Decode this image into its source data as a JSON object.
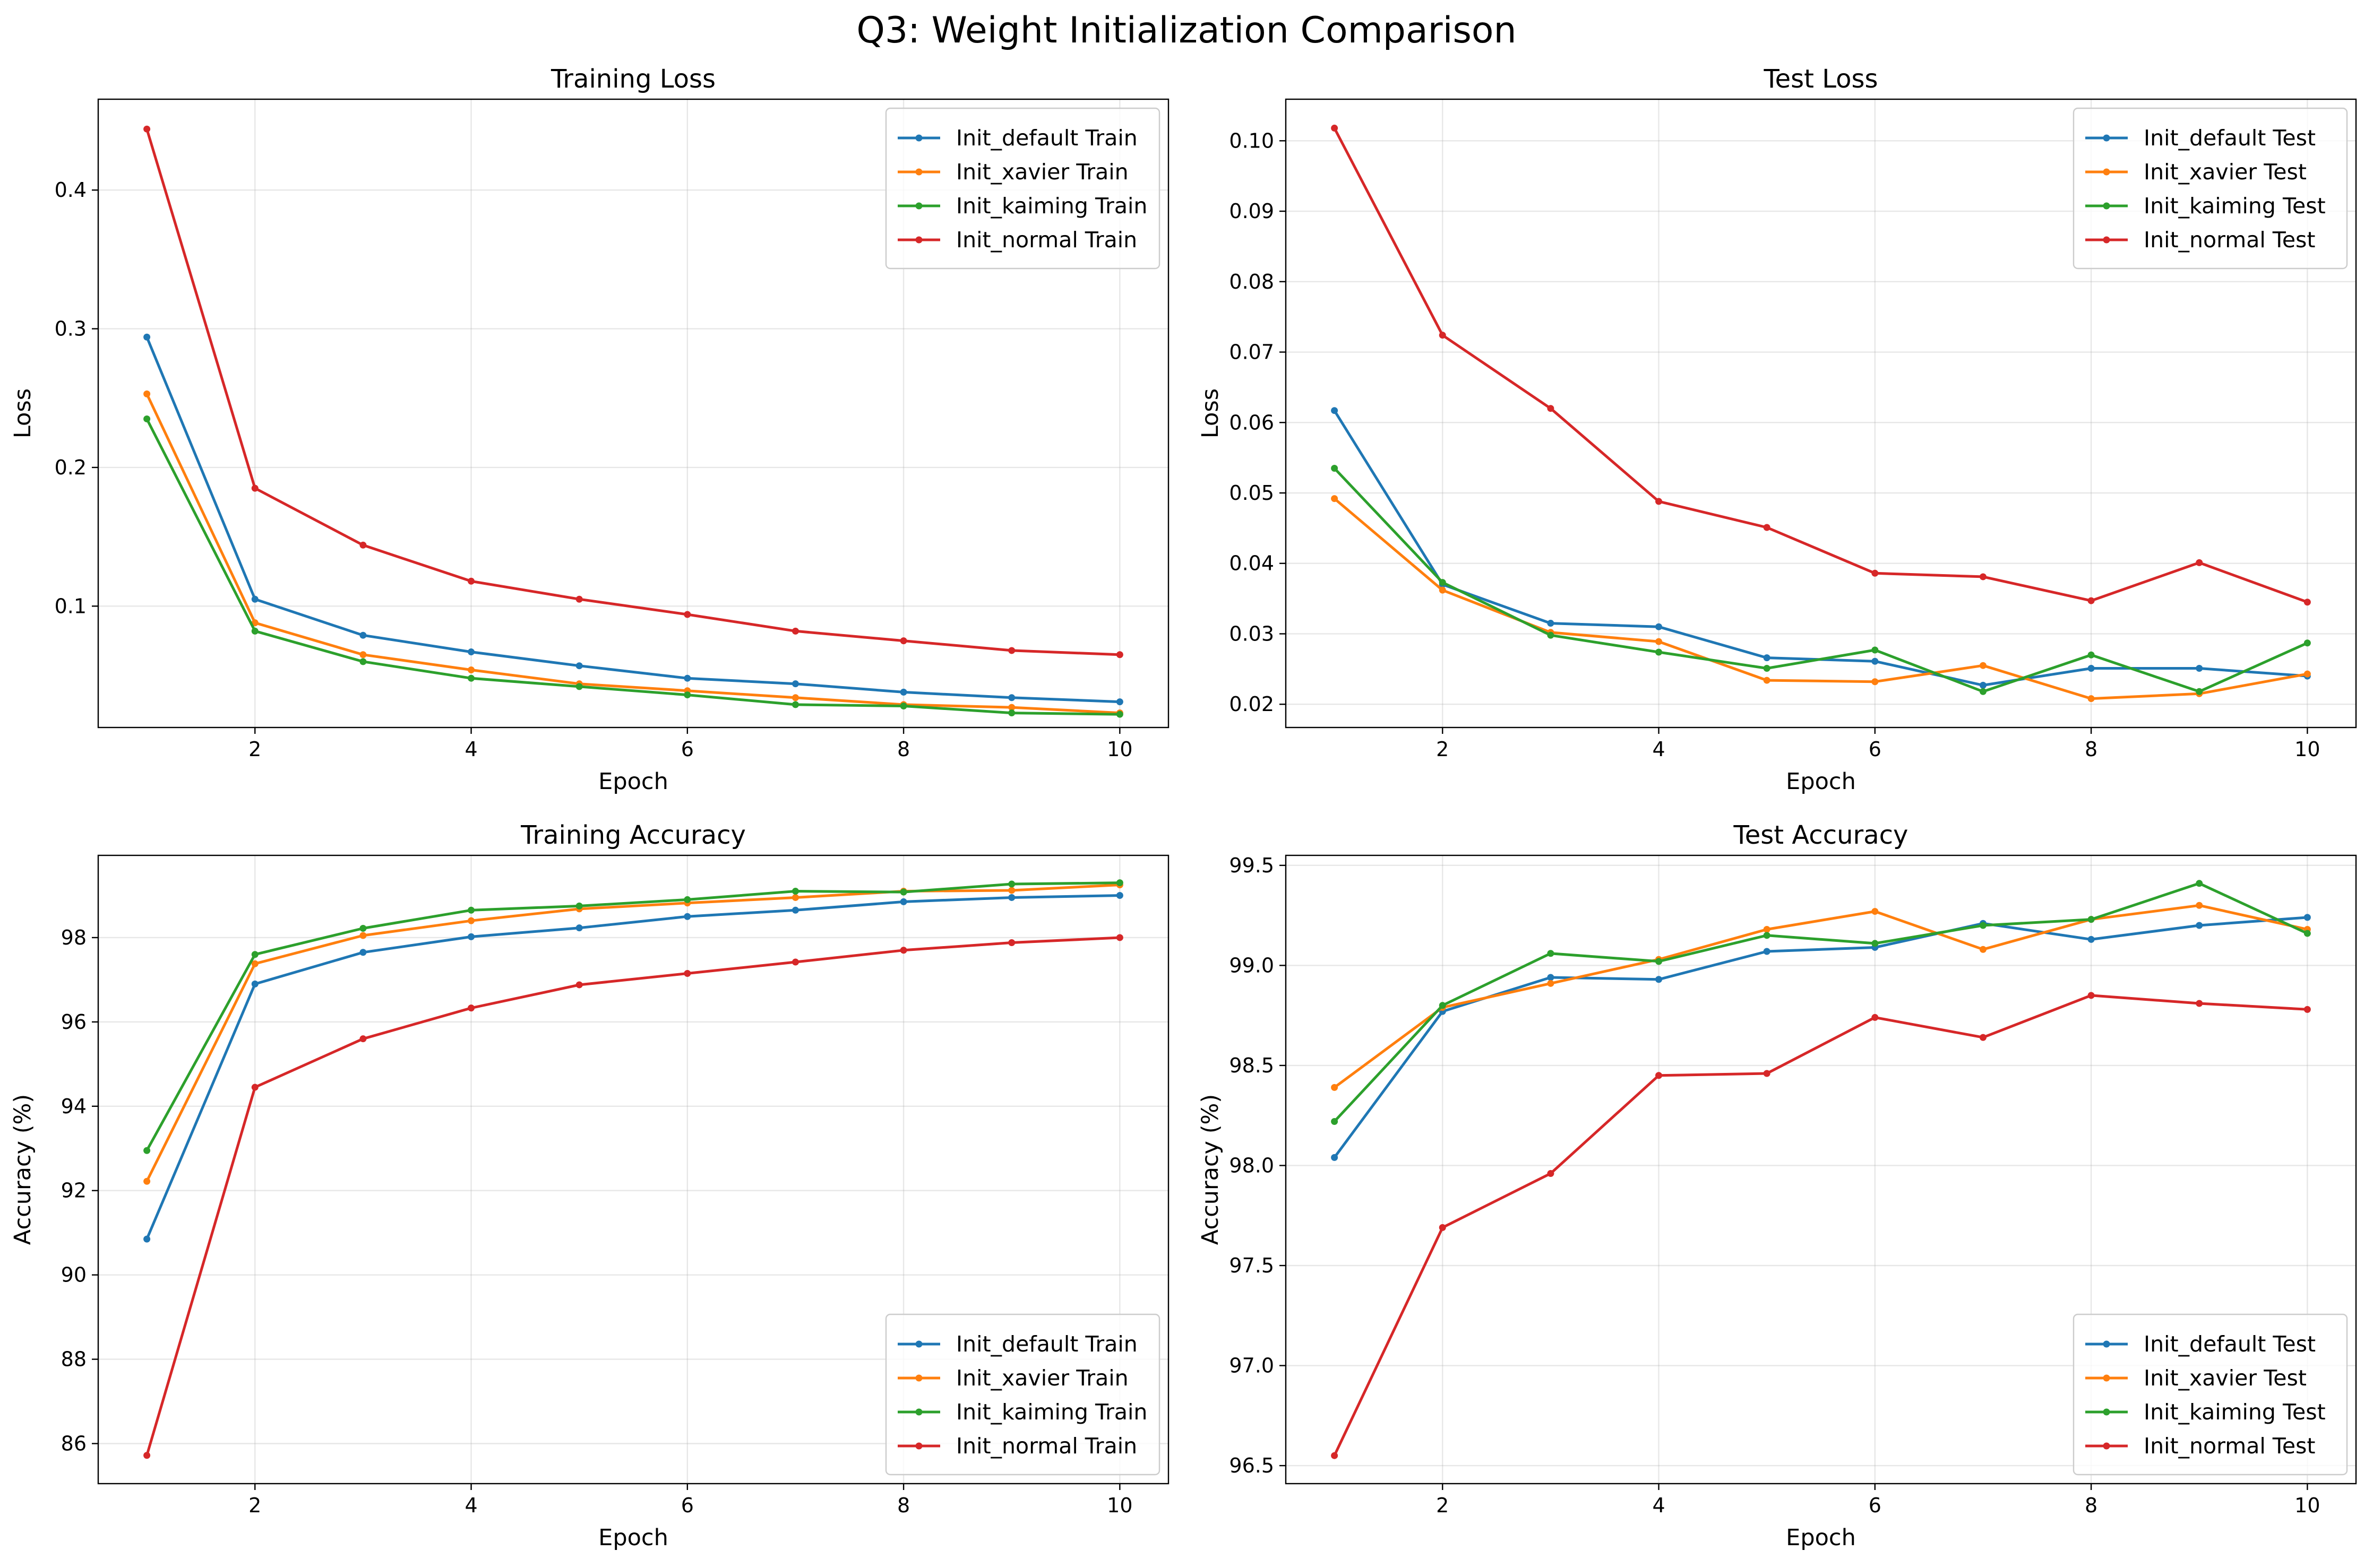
{
  "figure": {
    "title": "Q3: Weight Initialization Comparison"
  },
  "colors": {
    "default": "#1f77b4",
    "xavier": "#ff7f0e",
    "kaiming": "#2ca02c",
    "normal": "#d62728"
  },
  "chart_data": [
    {
      "type": "line",
      "title": "Training Loss",
      "xlabel": "Epoch",
      "ylabel": "Loss",
      "xlim": [
        0.55,
        10.45
      ],
      "ylim": [
        0.0125,
        0.4655
      ],
      "xticks": [
        2,
        4,
        6,
        8,
        10
      ],
      "xtick_labels": [
        "2",
        "4",
        "6",
        "8",
        "10"
      ],
      "yticks": [
        0.1,
        0.2,
        0.3,
        0.4
      ],
      "ytick_labels": [
        "0.1",
        "0.2",
        "0.3",
        "0.4"
      ],
      "grid": true,
      "legend_position": "upper right",
      "x": [
        1,
        2,
        3,
        4,
        5,
        6,
        7,
        8,
        9,
        10
      ],
      "series": [
        {
          "name": "Init_default Train",
          "color": "#1f77b4",
          "values": [
            0.294,
            0.105,
            0.079,
            0.067,
            0.057,
            0.048,
            0.044,
            0.038,
            0.034,
            0.031
          ]
        },
        {
          "name": "Init_xavier Train",
          "color": "#ff7f0e",
          "values": [
            0.253,
            0.088,
            0.065,
            0.054,
            0.044,
            0.039,
            0.034,
            0.029,
            0.027,
            0.023
          ]
        },
        {
          "name": "Init_kaiming Train",
          "color": "#2ca02c",
          "values": [
            0.235,
            0.082,
            0.06,
            0.048,
            0.042,
            0.036,
            0.029,
            0.028,
            0.023,
            0.022
          ]
        },
        {
          "name": "Init_normal Train",
          "color": "#d62728",
          "values": [
            0.444,
            0.185,
            0.144,
            0.118,
            0.105,
            0.094,
            0.082,
            0.075,
            0.068,
            0.065
          ]
        }
      ]
    },
    {
      "type": "line",
      "title": "Test Loss",
      "xlabel": "Epoch",
      "ylabel": "Loss",
      "xlim": [
        0.55,
        10.45
      ],
      "ylim": [
        0.0167,
        0.1059
      ],
      "xticks": [
        2,
        4,
        6,
        8,
        10
      ],
      "xtick_labels": [
        "2",
        "4",
        "6",
        "8",
        "10"
      ],
      "yticks": [
        0.02,
        0.03,
        0.04,
        0.05,
        0.06,
        0.07,
        0.08,
        0.09,
        0.1
      ],
      "ytick_labels": [
        "0.02",
        "0.03",
        "0.04",
        "0.05",
        "0.06",
        "0.07",
        "0.08",
        "0.09",
        "0.10"
      ],
      "grid": true,
      "legend_position": "upper right",
      "x": [
        1,
        2,
        3,
        4,
        5,
        6,
        7,
        8,
        9,
        10
      ],
      "series": [
        {
          "name": "Init_default Test",
          "color": "#1f77b4",
          "values": [
            0.0617,
            0.037,
            0.0315,
            0.031,
            0.0266,
            0.0261,
            0.0227,
            0.0251,
            0.0251,
            0.024
          ]
        },
        {
          "name": "Init_xavier Test",
          "color": "#ff7f0e",
          "values": [
            0.0492,
            0.0362,
            0.0302,
            0.0289,
            0.0234,
            0.0232,
            0.0255,
            0.0208,
            0.0215,
            0.0243
          ]
        },
        {
          "name": "Init_kaiming Test",
          "color": "#2ca02c",
          "values": [
            0.0535,
            0.0373,
            0.0298,
            0.0274,
            0.0251,
            0.0277,
            0.0218,
            0.027,
            0.0218,
            0.0287
          ]
        },
        {
          "name": "Init_normal Test",
          "color": "#d62728",
          "values": [
            0.1018,
            0.0724,
            0.062,
            0.0488,
            0.0451,
            0.0386,
            0.0381,
            0.0347,
            0.0401,
            0.0345
          ]
        }
      ]
    },
    {
      "type": "line",
      "title": "Training Accuracy",
      "xlabel": "Epoch",
      "ylabel": "Accuracy (%)",
      "xlim": [
        0.55,
        10.45
      ],
      "ylim": [
        85.05,
        99.95
      ],
      "xticks": [
        2,
        4,
        6,
        8,
        10
      ],
      "xtick_labels": [
        "2",
        "4",
        "6",
        "8",
        "10"
      ],
      "yticks": [
        86,
        88,
        90,
        92,
        94,
        96,
        98
      ],
      "ytick_labels": [
        "86",
        "88",
        "90",
        "92",
        "94",
        "96",
        "98"
      ],
      "grid": true,
      "legend_position": "lower right",
      "x": [
        1,
        2,
        3,
        4,
        5,
        6,
        7,
        8,
        9,
        10
      ],
      "series": [
        {
          "name": "Init_default Train",
          "color": "#1f77b4",
          "values": [
            90.85,
            96.9,
            97.65,
            98.02,
            98.23,
            98.5,
            98.65,
            98.85,
            98.95,
            99.0
          ]
        },
        {
          "name": "Init_xavier Train",
          "color": "#ff7f0e",
          "values": [
            92.22,
            97.38,
            98.05,
            98.4,
            98.68,
            98.82,
            98.95,
            99.1,
            99.12,
            99.25
          ]
        },
        {
          "name": "Init_kaiming Train",
          "color": "#2ca02c",
          "values": [
            92.95,
            97.6,
            98.22,
            98.65,
            98.75,
            98.9,
            99.1,
            99.08,
            99.27,
            99.3
          ]
        },
        {
          "name": "Init_normal Train",
          "color": "#d62728",
          "values": [
            85.72,
            94.45,
            95.6,
            96.33,
            96.88,
            97.15,
            97.42,
            97.7,
            97.88,
            98.0
          ]
        }
      ]
    },
    {
      "type": "line",
      "title": "Test Accuracy",
      "xlabel": "Epoch",
      "ylabel": "Accuracy (%)",
      "xlim": [
        0.55,
        10.45
      ],
      "ylim": [
        96.41,
        99.55
      ],
      "xticks": [
        2,
        4,
        6,
        8,
        10
      ],
      "xtick_labels": [
        "2",
        "4",
        "6",
        "8",
        "10"
      ],
      "yticks": [
        96.5,
        97.0,
        97.5,
        98.0,
        98.5,
        99.0,
        99.5
      ],
      "ytick_labels": [
        "96.5",
        "97.0",
        "97.5",
        "98.0",
        "98.5",
        "99.0",
        "99.5"
      ],
      "grid": true,
      "legend_position": "lower right",
      "x": [
        1,
        2,
        3,
        4,
        5,
        6,
        7,
        8,
        9,
        10
      ],
      "series": [
        {
          "name": "Init_default Test",
          "color": "#1f77b4",
          "values": [
            98.04,
            98.77,
            98.94,
            98.93,
            99.07,
            99.09,
            99.21,
            99.13,
            99.2,
            99.24
          ]
        },
        {
          "name": "Init_xavier Test",
          "color": "#ff7f0e",
          "values": [
            98.39,
            98.79,
            98.91,
            99.03,
            99.18,
            99.27,
            99.08,
            99.23,
            99.3,
            99.18
          ]
        },
        {
          "name": "Init_kaiming Test",
          "color": "#2ca02c",
          "values": [
            98.22,
            98.8,
            99.06,
            99.02,
            99.15,
            99.11,
            99.2,
            99.23,
            99.41,
            99.16
          ]
        },
        {
          "name": "Init_normal Test",
          "color": "#d62728",
          "values": [
            96.55,
            97.69,
            97.96,
            98.45,
            98.46,
            98.74,
            98.64,
            98.85,
            98.81,
            98.78
          ]
        }
      ]
    }
  ]
}
